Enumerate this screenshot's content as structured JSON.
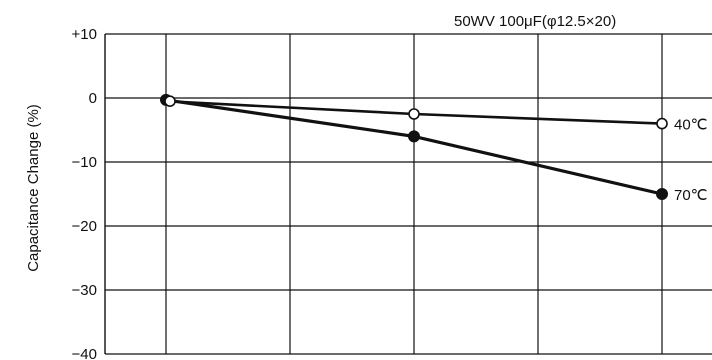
{
  "chart_data": {
    "type": "line",
    "title": "50WV 100μF(φ12.5×20)",
    "ylabel": "Capacitance Change (%)",
    "xlabel": "",
    "ylim": [
      -40,
      10
    ],
    "yticks": [
      10,
      0,
      -10,
      -20,
      -30,
      -40
    ],
    "ytick_labels": [
      "+10",
      "0",
      "−10",
      "−20",
      "−30",
      "−40"
    ],
    "x_gridlines": 5,
    "grid": true,
    "series": [
      {
        "name": "40℃",
        "marker": "open-circle",
        "color": "#111111",
        "x": [
          0,
          2,
          4
        ],
        "values": [
          -0.5,
          -2.5,
          -4
        ]
      },
      {
        "name": "70℃",
        "marker": "filled-circle",
        "color": "#111111",
        "x": [
          0,
          2,
          4
        ],
        "values": [
          -0.3,
          -6,
          -15
        ]
      }
    ]
  }
}
